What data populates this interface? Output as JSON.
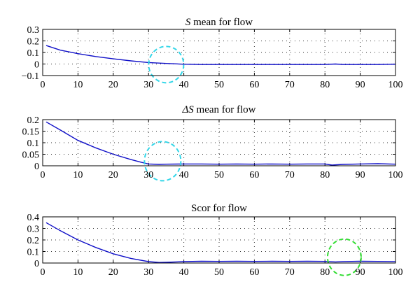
{
  "chart_data": [
    {
      "type": "line",
      "title_italic": "S",
      "title_rest": " mean for flow",
      "xlim": [
        0,
        100
      ],
      "ylim": [
        -0.1,
        0.3
      ],
      "xticks": [
        0,
        10,
        20,
        30,
        40,
        50,
        60,
        70,
        80,
        90,
        100
      ],
      "xtick_labels": [
        "0",
        "10",
        "20",
        "30",
        "40",
        "50",
        "60",
        "70",
        "80",
        "90",
        "100"
      ],
      "yticks": [
        -0.1,
        0,
        0.1,
        0.2,
        0.3
      ],
      "ytick_labels": [
        "−0.1",
        "0",
        "0.1",
        "0.2",
        "0.3"
      ],
      "grid": true,
      "x": [
        1,
        5,
        10,
        15,
        20,
        25,
        30,
        35,
        40,
        45,
        50,
        55,
        60,
        65,
        70,
        75,
        80,
        83,
        85,
        90,
        95,
        100
      ],
      "y": [
        0.16,
        0.12,
        0.09,
        0.065,
        0.045,
        0.027,
        0.013,
        0.005,
        -0.002,
        -0.004,
        -0.004,
        -0.004,
        -0.004,
        -0.004,
        -0.004,
        -0.004,
        -0.004,
        0.0,
        -0.004,
        -0.004,
        -0.004,
        -0.002
      ],
      "series_color": "#1010c8",
      "marker": {
        "x": 35,
        "y": -0.005,
        "color": "#33d6e8"
      }
    },
    {
      "type": "line",
      "title_italic": "ΔS",
      "title_rest": " mean for flow",
      "xlim": [
        0,
        100
      ],
      "ylim": [
        0,
        0.2
      ],
      "xticks": [
        0,
        10,
        20,
        30,
        40,
        50,
        60,
        70,
        80,
        90,
        100
      ],
      "xtick_labels": [
        "0",
        "10",
        "20",
        "30",
        "40",
        "50",
        "60",
        "70",
        "80",
        "90",
        "100"
      ],
      "yticks": [
        0,
        0.05,
        0.1,
        0.15,
        0.2
      ],
      "ytick_labels": [
        "0",
        "0.05",
        "0.1",
        "0.15",
        "0.2"
      ],
      "grid": true,
      "x": [
        1,
        5,
        10,
        15,
        20,
        25,
        28,
        30,
        33,
        35,
        40,
        45,
        50,
        55,
        60,
        65,
        70,
        75,
        80,
        82,
        85,
        90,
        95,
        100
      ],
      "y": [
        0.19,
        0.155,
        0.11,
        0.078,
        0.05,
        0.027,
        0.015,
        0.008,
        0.006,
        0.007,
        0.008,
        0.008,
        0.007,
        0.008,
        0.007,
        0.008,
        0.007,
        0.008,
        0.008,
        0.003,
        0.006,
        0.008,
        0.009,
        0.007
      ],
      "series_color": "#1010c8",
      "marker": {
        "x": 34,
        "y": 0.02,
        "color": "#33d6e8"
      }
    },
    {
      "type": "line",
      "title_italic": "",
      "title_rest": "Scor for flow",
      "xlim": [
        0,
        100
      ],
      "ylim": [
        0,
        0.4
      ],
      "xticks": [
        0,
        10,
        20,
        30,
        40,
        50,
        60,
        70,
        80,
        90,
        100
      ],
      "xtick_labels": [
        "0",
        "10",
        "20",
        "30",
        "40",
        "50",
        "60",
        "70",
        "80",
        "90",
        "100"
      ],
      "yticks": [
        0,
        0.1,
        0.2,
        0.3,
        0.4
      ],
      "ytick_labels": [
        "0",
        "0.1",
        "0.2",
        "0.3",
        "0.4"
      ],
      "grid": true,
      "x": [
        1,
        5,
        10,
        15,
        20,
        25,
        30,
        33,
        35,
        40,
        45,
        50,
        55,
        60,
        65,
        70,
        75,
        80,
        83,
        85,
        90,
        95,
        100
      ],
      "y": [
        0.35,
        0.28,
        0.2,
        0.135,
        0.08,
        0.04,
        0.012,
        0.005,
        0.006,
        0.012,
        0.015,
        0.014,
        0.015,
        0.014,
        0.015,
        0.014,
        0.015,
        0.014,
        0.01,
        0.013,
        0.015,
        0.014,
        0.013
      ],
      "series_color": "#1010c8",
      "marker": {
        "x": 85.5,
        "y": 0.05,
        "color": "#33dd33"
      }
    }
  ]
}
